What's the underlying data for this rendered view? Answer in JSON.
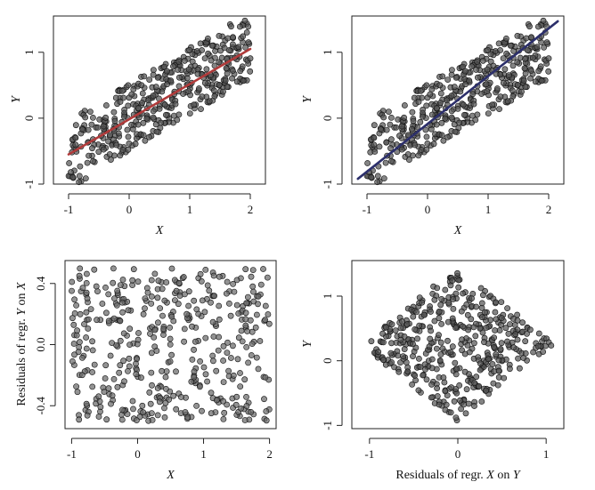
{
  "chart_data": [
    {
      "type": "scatter",
      "panel": "top-left",
      "xlabel": "X",
      "ylabel": "Y",
      "xlim": [
        -1.25,
        2.25
      ],
      "ylim": [
        -1.0,
        1.55
      ],
      "xticks": [
        "-1",
        "0",
        "1",
        "2"
      ],
      "yticks": [
        "-1",
        "0",
        "1"
      ],
      "xtick_values": [
        -1,
        0,
        1,
        2
      ],
      "ytick_values": [
        -1,
        0,
        1
      ],
      "points": {
        "kind": "band",
        "n": 430,
        "x_range": [
          -1,
          2
        ],
        "slope": 0.55,
        "intercept": 0.0,
        "spread": 0.55,
        "seed": 11
      },
      "point_color": "#555555",
      "fit_line": {
        "x": [
          -1.0,
          2.0
        ],
        "y": [
          -0.55,
          1.05
        ],
        "color": "#b03a3a"
      }
    },
    {
      "type": "scatter",
      "panel": "top-right",
      "xlabel": "X",
      "ylabel": "Y",
      "xlim": [
        -1.25,
        2.25
      ],
      "ylim": [
        -1.0,
        1.55
      ],
      "xticks": [
        "-1",
        "0",
        "1",
        "2"
      ],
      "yticks": [
        "-1",
        "0",
        "1"
      ],
      "xtick_values": [
        -1,
        0,
        1,
        2
      ],
      "ytick_values": [
        -1,
        0,
        1
      ],
      "points": {
        "kind": "band",
        "n": 430,
        "x_range": [
          -1,
          2
        ],
        "slope": 0.55,
        "intercept": 0.0,
        "spread": 0.55,
        "seed": 11
      },
      "point_color": "#555555",
      "fit_line": {
        "x": [
          -1.15,
          2.15
        ],
        "y": [
          -0.92,
          1.47
        ],
        "color": "#2c2f6b"
      }
    },
    {
      "type": "scatter",
      "panel": "bottom-left",
      "xlabel": "X",
      "ylabel_parts": [
        "Residuals of regr. ",
        "Y",
        " on ",
        "X"
      ],
      "xlim": [
        -1.1,
        2.1
      ],
      "ylim": [
        -0.55,
        0.55
      ],
      "xticks": [
        "-1",
        "0",
        "1",
        "2"
      ],
      "yticks": [
        "-0.4",
        "0.0",
        "0.4"
      ],
      "xtick_values": [
        -1,
        0,
        1,
        2
      ],
      "ytick_values": [
        -0.4,
        0.0,
        0.4
      ],
      "points": {
        "kind": "uniform",
        "n": 430,
        "x_range": [
          -1,
          2
        ],
        "y_range": [
          -0.5,
          0.5
        ],
        "seed": 23
      },
      "point_color": "#6a6a6a"
    },
    {
      "type": "scatter",
      "panel": "bottom-right",
      "xlabel_parts": [
        "Residuals of regr. ",
        "X",
        " on ",
        "Y"
      ],
      "ylabel": "Y",
      "xlim": [
        -1.2,
        1.2
      ],
      "ylim": [
        -1.05,
        1.55
      ],
      "xticks": [
        "-1",
        "0",
        "1"
      ],
      "yticks": [
        "-1",
        "0",
        "1"
      ],
      "xtick_values": [
        -1,
        0,
        1
      ],
      "ytick_values": [
        -1,
        0,
        1
      ],
      "points": {
        "kind": "diamond",
        "n": 430,
        "center": [
          0.0,
          0.25
        ],
        "half_width": 1.1,
        "half_height": 1.2,
        "seed": 37
      },
      "point_color": "#555555"
    }
  ]
}
